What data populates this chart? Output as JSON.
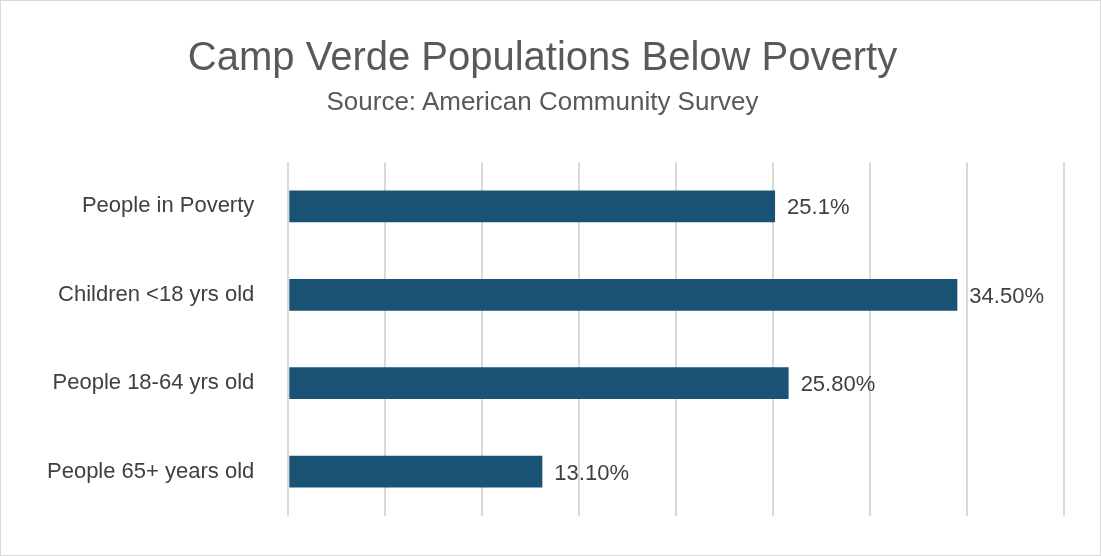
{
  "chart_data": {
    "type": "bar",
    "orientation": "horizontal",
    "title": "Camp Verde Populations Below Poverty",
    "subtitle": "Source: American Community Survey",
    "categories": [
      "People in Poverty",
      "Children <18 yrs old",
      "People 18-64 yrs old",
      "People 65+ years old"
    ],
    "values": [
      25.1,
      34.5,
      25.8,
      13.1
    ],
    "value_labels": [
      "25.1%",
      "34.50%",
      "25.80%",
      "13.10%"
    ],
    "color": "#1a5276",
    "xlim": [
      0,
      40
    ],
    "xticks": [
      {
        "value": 0,
        "label": null
      },
      {
        "value": 5,
        "label": null
      },
      {
        "value": 10,
        "label": null
      },
      {
        "value": 15,
        "label": null
      },
      {
        "value": 20,
        "label": null
      },
      {
        "value": 25,
        "label": null
      },
      {
        "value": 30,
        "label": null
      },
      {
        "value": 35,
        "label": null
      },
      {
        "value": 40,
        "label": null
      }
    ],
    "grid": "x",
    "tick_labels": "y"
  }
}
